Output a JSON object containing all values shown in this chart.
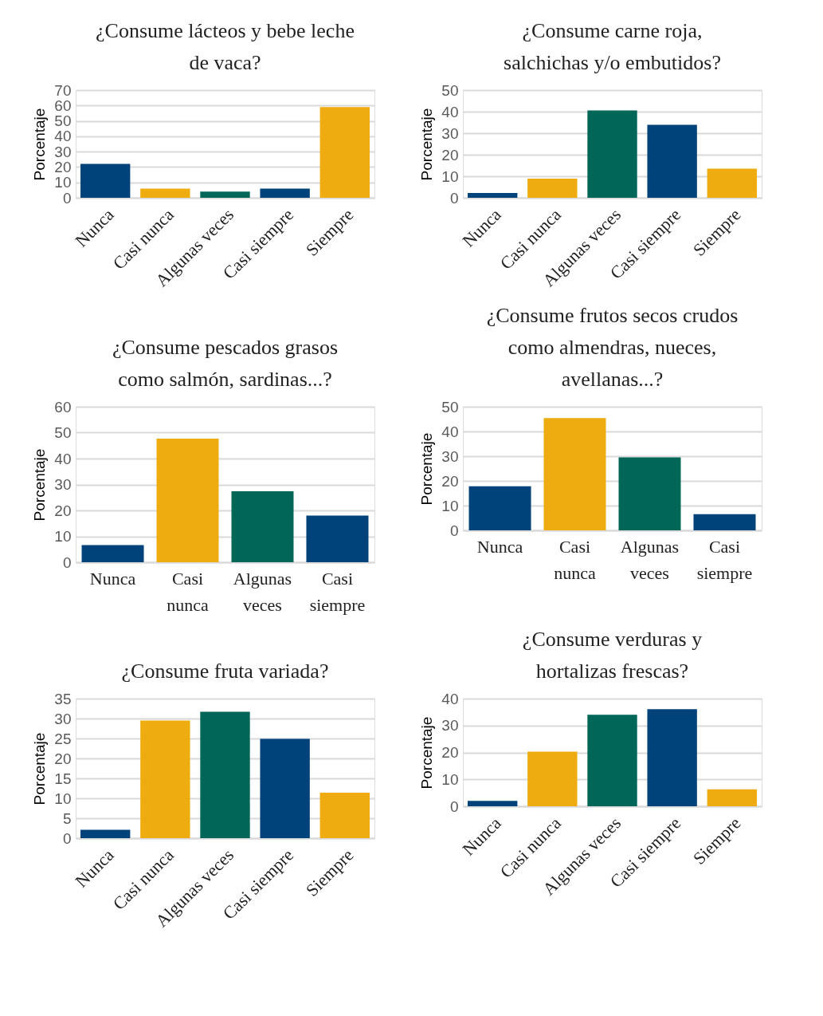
{
  "chart_data": [
    {
      "type": "bar",
      "title": "¿Consume lácteos y bebe leche\nde vaca?",
      "ylabel": "Porcentaje",
      "categories": [
        "Nunca",
        "Casi nunca",
        "Algunas veces",
        "Casi siempre",
        "Siempre"
      ],
      "values": [
        22,
        6,
        4,
        6,
        59
      ],
      "colors": [
        "#00427a",
        "#eeac10",
        "#006658",
        "#00427a",
        "#eeac10"
      ],
      "ylim": [
        0,
        70
      ],
      "yticks": [
        0,
        10,
        20,
        30,
        40,
        50,
        60,
        70
      ],
      "grid": "y"
    },
    {
      "type": "bar",
      "title": "¿Consume carne roja,\nsalchichas y/o embutidos?",
      "ylabel": "Porcentaje",
      "categories": [
        "Nunca",
        "Casi nunca",
        "Algunas veces",
        "Casi siempre",
        "Siempre"
      ],
      "values": [
        2.2,
        8.9,
        40.6,
        33.9,
        13.5
      ],
      "colors": [
        "#00427a",
        "#eeac10",
        "#006658",
        "#00427a",
        "#eeac10"
      ],
      "ylim": [
        0,
        50
      ],
      "yticks": [
        0,
        10,
        20,
        30,
        40,
        50
      ],
      "grid": "y"
    },
    {
      "type": "bar",
      "title": "¿Consume pescados grasos\ncomo salmón, sardinas...?",
      "ylabel": "Porcentaje",
      "categories": [
        "Nunca",
        "Casi nunca",
        "Algunas veces",
        "Casi siempre"
      ],
      "values": [
        6.6,
        47.7,
        27.4,
        18.0
      ],
      "colors": [
        "#00427a",
        "#eeac10",
        "#006658",
        "#00427a"
      ],
      "ylim": [
        0,
        60
      ],
      "yticks": [
        0,
        10,
        20,
        30,
        40,
        50,
        60
      ],
      "grid": "y"
    },
    {
      "type": "bar",
      "title": "¿Consume frutos secos crudos\ncomo almendras, nueces,\navellanas...?",
      "ylabel": "Porcentaje",
      "categories": [
        "Nunca",
        "Casi nunca",
        "Algunas veces",
        "Casi siempre"
      ],
      "values": [
        17.8,
        45.4,
        29.5,
        6.5
      ],
      "colors": [
        "#00427a",
        "#eeac10",
        "#006658",
        "#00427a"
      ],
      "ylim": [
        0,
        50
      ],
      "yticks": [
        0,
        10,
        20,
        30,
        40,
        50
      ],
      "grid": "y"
    },
    {
      "type": "bar",
      "title": "¿Consume fruta variada?",
      "ylabel": "Porcentaje",
      "categories": [
        "Nunca",
        "Casi nunca",
        "Algunas veces",
        "Casi siempre",
        "Siempre"
      ],
      "values": [
        2.1,
        29.5,
        31.7,
        24.9,
        11.4
      ],
      "colors": [
        "#00427a",
        "#eeac10",
        "#006658",
        "#00427a",
        "#eeac10"
      ],
      "ylim": [
        0,
        35
      ],
      "yticks": [
        0,
        5,
        10,
        15,
        20,
        25,
        30,
        35
      ],
      "grid": "y"
    },
    {
      "type": "bar",
      "title": "¿Consume verduras y\nhortalizas frescas?",
      "ylabel": "Porcentaje",
      "categories": [
        "Nunca",
        "Casi nunca",
        "Algunas veces",
        "Casi siempre",
        "Siempre"
      ],
      "values": [
        2.0,
        20.3,
        34.0,
        36.1,
        6.3
      ],
      "colors": [
        "#00427a",
        "#eeac10",
        "#006658",
        "#00427a",
        "#eeac10"
      ],
      "ylim": [
        0,
        40
      ],
      "yticks": [
        0,
        10,
        20,
        30,
        40
      ],
      "grid": "y"
    }
  ]
}
